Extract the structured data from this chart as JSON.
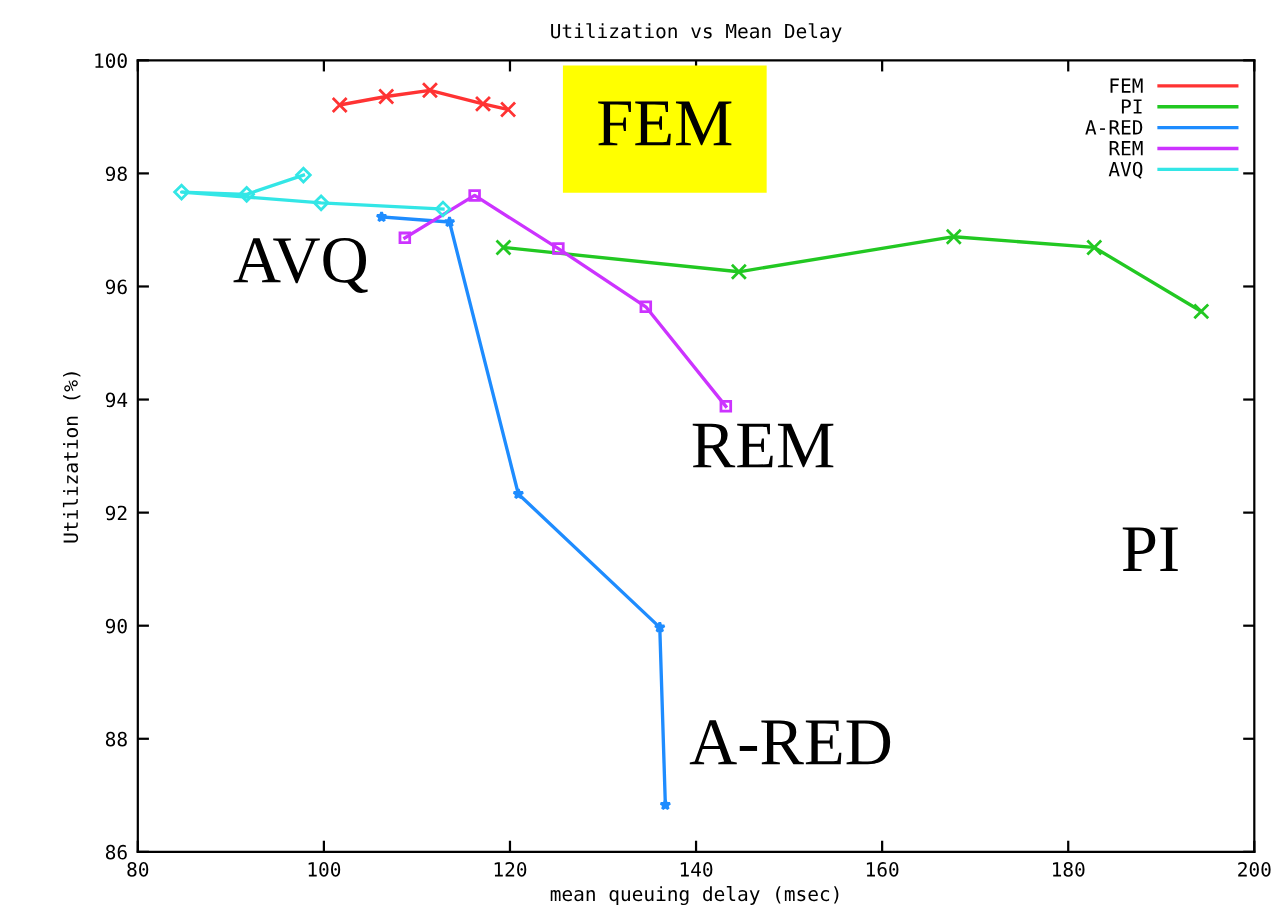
{
  "chart_data": {
    "type": "line",
    "title": "Utilization vs Mean Delay",
    "xlabel": "mean queuing delay (msec)",
    "ylabel": "Utilization (%)",
    "xlim": [
      80,
      200
    ],
    "xticks": [
      80,
      100,
      120,
      140,
      160,
      180,
      200
    ],
    "ylim": [
      86,
      100
    ],
    "yticks": [
      86,
      88,
      90,
      92,
      94,
      96,
      98,
      100
    ],
    "grid": false,
    "legend": "top right",
    "series": [
      {
        "name": "FEM",
        "color": "#ff3333",
        "marker": "cross",
        "x": [
          101.7,
          106.7,
          111.4,
          117.1,
          119.8
        ],
        "values": [
          99.21,
          99.36,
          99.47,
          99.23,
          99.13
        ]
      },
      {
        "name": "PI",
        "color": "#22c822",
        "marker": "cross",
        "x": [
          119.3,
          144.6,
          167.7,
          182.8,
          194.3
        ],
        "values": [
          96.69,
          96.26,
          96.88,
          96.69,
          95.56
        ]
      },
      {
        "name": "A-RED",
        "color": "#1e8cff",
        "marker": "star",
        "x": [
          106.2,
          113.5,
          120.9,
          136.1,
          136.7
        ],
        "values": [
          97.23,
          97.14,
          92.33,
          89.97,
          86.83
        ]
      },
      {
        "name": "REM",
        "color": "#cc33ff",
        "marker": "square",
        "x": [
          108.7,
          116.2,
          125.2,
          134.6,
          143.2
        ],
        "values": [
          96.86,
          97.61,
          96.67,
          95.64,
          93.88
        ]
      },
      {
        "name": "AVQ",
        "color": "#33e6e6",
        "marker": "diamond",
        "x": [
          97.8,
          91.7,
          84.7,
          99.7,
          112.8
        ],
        "values": [
          97.97,
          97.63,
          97.67,
          97.48,
          97.37
        ]
      }
    ],
    "annotations": [
      "FEM",
      "AVQ",
      "PI",
      "REM",
      "A-RED"
    ]
  }
}
